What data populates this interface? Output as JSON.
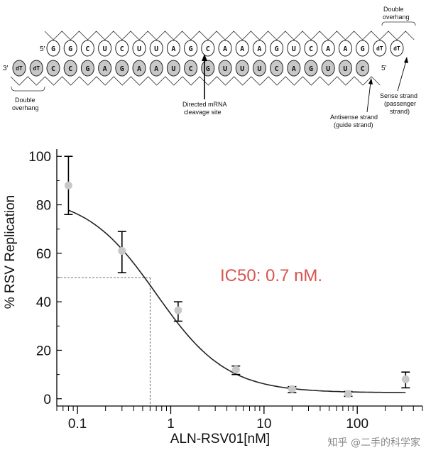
{
  "diagram": {
    "sense_strand": {
      "prime5": "5′",
      "nucleotides": [
        "G",
        "G",
        "C",
        "U",
        "C",
        "U",
        "U",
        "A",
        "G",
        "C",
        "A",
        "A",
        "A",
        "G",
        "U",
        "C",
        "A",
        "A",
        "G"
      ],
      "overhang": [
        "dT",
        "dT"
      ]
    },
    "antisense_strand": {
      "prime3": "3′",
      "prime5": "5′",
      "overhang": [
        "dT",
        "dT"
      ],
      "nucleotides": [
        "C",
        "C",
        "G",
        "A",
        "G",
        "A",
        "A",
        "U",
        "C",
        "G",
        "U",
        "U",
        "U",
        "C",
        "A",
        "G",
        "U",
        "U",
        "C"
      ]
    },
    "labels": {
      "double_overhang_top": [
        "Double",
        "overhang"
      ],
      "double_overhang_bottom": [
        "Double",
        "overhang"
      ],
      "cleavage_site": [
        "Directed mRNA",
        "cleavage site"
      ],
      "antisense": [
        "Antisense strand",
        "(guide strand)"
      ],
      "sense": [
        "Sense strand",
        "(passenger",
        "strand)"
      ]
    },
    "colors": {
      "sense_fill": "#ffffff",
      "antisense_fill": "#c8c8c8",
      "overhang_fill": "#c8c8c8"
    }
  },
  "chart_data": {
    "type": "scatter",
    "xscale": "log",
    "xlim": [
      0.06,
      500
    ],
    "ylim": [
      -3,
      103
    ],
    "xticks": [
      0.1,
      1,
      10,
      100
    ],
    "xtick_labels": [
      "0.1",
      "1",
      "10",
      "100"
    ],
    "yticks": [
      0,
      20,
      40,
      60,
      80,
      100
    ],
    "ytick_labels": [
      "0",
      "20",
      "40",
      "60",
      "80",
      "100"
    ],
    "xlabel": "ALN-RSV01[nM]",
    "ylabel": "% RSV Replication",
    "points": [
      {
        "x": 0.08,
        "y": 88,
        "err_low": 76,
        "err_high": 100
      },
      {
        "x": 0.3,
        "y": 61,
        "err_low": 52,
        "err_high": 69
      },
      {
        "x": 1.2,
        "y": 36.5,
        "err_low": 32,
        "err_high": 40
      },
      {
        "x": 5,
        "y": 12,
        "err_low": 10,
        "err_high": 13.5
      },
      {
        "x": 20,
        "y": 4,
        "err_low": 2.5,
        "err_high": 5
      },
      {
        "x": 80,
        "y": 2,
        "err_low": 1,
        "err_high": 3
      },
      {
        "x": 330,
        "y": 8,
        "err_low": 4.5,
        "err_high": 11
      }
    ],
    "fit_curve": {
      "top": 84,
      "bottom": 2.5,
      "ic50": 0.7,
      "hill": 1.15,
      "x_start": 0.08,
      "x_end": 330
    },
    "ic50_guide": {
      "x": 0.6,
      "y": 50
    },
    "annotation": "IC50: 0.7 nM.",
    "grid": false,
    "colors": {
      "points": "#c8c8c8",
      "curve": "#222222",
      "annotation": "#d9534f",
      "guide": "#444444"
    }
  },
  "watermark": "知乎 @二手的科学家"
}
